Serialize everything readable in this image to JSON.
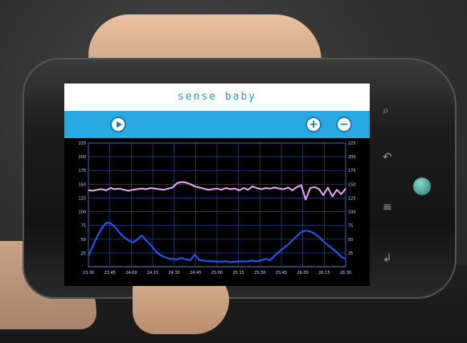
{
  "app": {
    "brand": "sense baby"
  },
  "toolbar": {
    "play_icon": "play-icon",
    "zoom_in_icon": "zoom-in-icon",
    "zoom_out_icon": "zoom-out-icon",
    "zoom_in_label": "+",
    "zoom_out_label": "−"
  },
  "colors": {
    "brand_blue": "#2a95d3",
    "toolbar_blue": "#2aa8e0",
    "heart_rate_line": "#e8a8f0",
    "activity_line": "#1f5cff",
    "grid": "#2b4fa8"
  },
  "softkeys": [
    "search-icon",
    "back-icon",
    "menu-icon",
    "home-icon"
  ],
  "chart_data": {
    "type": "line",
    "title": "",
    "xlabel": "",
    "ylabel": "",
    "x_ticks": [
      "23:30",
      "23:45",
      "24:00",
      "24:15",
      "24:30",
      "24:45",
      "25:00",
      "25:15",
      "25:30",
      "25:45",
      "26:00",
      "26:15",
      "26:30"
    ],
    "y_ticks": [
      "225",
      "200",
      "175",
      "150",
      "125",
      "100",
      "75",
      "50",
      "25"
    ],
    "ylim": [
      0,
      225
    ],
    "grid": true,
    "series": [
      {
        "values": [
          139,
          138,
          140,
          141,
          139,
          143,
          141,
          142,
          140,
          138,
          140,
          141,
          142,
          141,
          143,
          142,
          141,
          140,
          142,
          144,
          152,
          154,
          153,
          150,
          146,
          144,
          142,
          140,
          141,
          142,
          140,
          143,
          141,
          142,
          139,
          143,
          140,
          146,
          143,
          141,
          143,
          142,
          144,
          142,
          141,
          144,
          139,
          145,
          148,
          122,
          143,
          145,
          141,
          130,
          144,
          128,
          140,
          132,
          142
        ]
      },
      {
        "values": [
          20,
          38,
          55,
          70,
          80,
          79,
          72,
          62,
          54,
          48,
          44,
          49,
          57,
          48,
          40,
          30,
          22,
          18,
          15,
          14,
          13,
          16,
          13,
          12,
          22,
          12,
          11,
          10,
          10,
          9,
          9,
          10,
          8,
          9,
          10,
          9,
          10,
          11,
          10,
          12,
          14,
          12,
          20,
          27,
          34,
          40,
          48,
          56,
          63,
          66,
          64,
          60,
          54,
          46,
          39,
          33,
          26,
          18,
          14
        ]
      }
    ]
  }
}
